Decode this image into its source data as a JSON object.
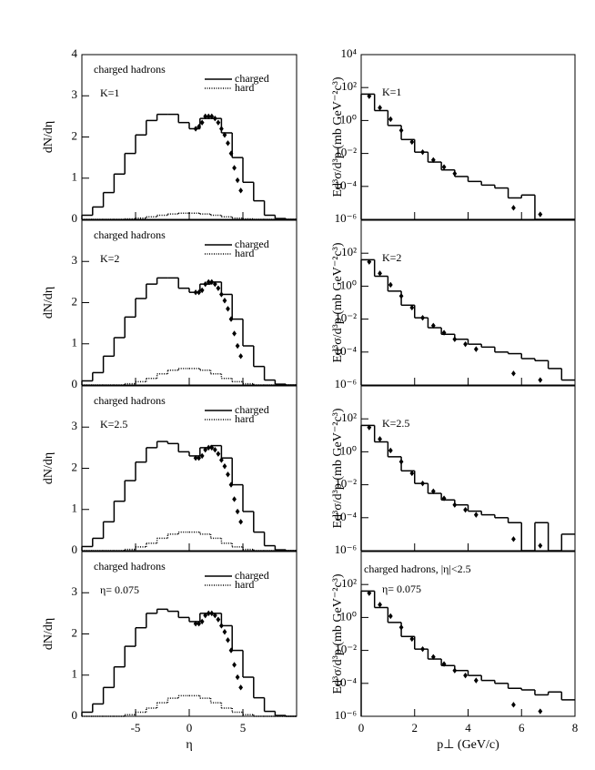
{
  "chart_data": [
    {
      "type": "histogram",
      "panel": "left",
      "ylabel": "dN/dη",
      "annotations": [
        "charged hadrons",
        "K=1"
      ],
      "bins": [
        -10,
        -9,
        -8,
        -7,
        -6,
        -5,
        -4,
        -3,
        -2,
        -1,
        0,
        1,
        2,
        3,
        4,
        5,
        6,
        7,
        8,
        9,
        10
      ],
      "series": [
        {
          "name": "charged",
          "color": "#000",
          "style": "solid",
          "values": [
            0.1,
            0.3,
            0.65,
            1.1,
            1.6,
            2.05,
            2.4,
            2.55,
            2.55,
            2.35,
            2.2,
            2.45,
            2.45,
            2.1,
            1.5,
            0.9,
            0.45,
            0.1,
            0.02,
            0
          ]
        },
        {
          "name": "hard",
          "color": "#000",
          "style": "dotted",
          "values": [
            0,
            0,
            0,
            0,
            0.01,
            0.03,
            0.06,
            0.1,
            0.13,
            0.15,
            0.15,
            0.13,
            0.1,
            0.06,
            0.03,
            0.01,
            0,
            0,
            0,
            0
          ]
        }
      ],
      "points": {
        "x": [
          0.6,
          0.9,
          1.2,
          1.5,
          1.8,
          2.1,
          2.4,
          2.7,
          3.0,
          3.3,
          3.6,
          3.9,
          4.2,
          4.5,
          4.8
        ],
        "values": [
          2.2,
          2.25,
          2.35,
          2.5,
          2.5,
          2.5,
          2.45,
          2.35,
          2.2,
          2.05,
          1.85,
          1.6,
          1.25,
          0.95,
          0.7
        ]
      },
      "xlim": [
        -10,
        10
      ],
      "xticks": [
        -5,
        0,
        5
      ],
      "show_xtick_labels": false,
      "ylim": [
        0,
        4
      ],
      "yticks": [
        0,
        1,
        2,
        3,
        4
      ]
    },
    {
      "type": "histogram",
      "panel": "right",
      "log_y": true,
      "ylabel": "Ed³σ/d³p (mb GeV⁻²c³)",
      "annotations": [
        "K=1"
      ],
      "bins": [
        0,
        0.5,
        1,
        1.5,
        2,
        2.5,
        3,
        3.5,
        4,
        4.5,
        5,
        5.5,
        6,
        6.5,
        7,
        7.5,
        8
      ],
      "values": [
        40,
        4,
        0.5,
        0.07,
        0.012,
        0.003,
        0.001,
        0.0004,
        0.0002,
        0.00012,
        8e-05,
        2e-05,
        3e-05,
        1e-06,
        1e-06,
        1e-06
      ],
      "points": {
        "x": [
          0.3,
          0.7,
          1.1,
          1.5,
          1.9,
          2.3,
          2.7,
          3.1,
          3.5,
          5.7,
          6.7
        ],
        "values": [
          30,
          6,
          1.2,
          0.25,
          0.05,
          0.012,
          0.004,
          0.0015,
          0.0006,
          5e-06,
          2e-06
        ]
      },
      "xlim": [
        0,
        8
      ],
      "xticks": [
        0,
        2,
        4,
        6,
        8
      ],
      "show_xtick_labels": false,
      "ylim": [
        1e-06,
        10000
      ],
      "yticks": [
        {
          "value": 10000,
          "label": "10⁴"
        },
        {
          "value": 100,
          "label": "10²"
        },
        {
          "value": 1,
          "label": "10⁰"
        },
        {
          "value": 0.01,
          "label": "10⁻²"
        },
        {
          "value": 0.0001,
          "label": "10⁻⁴"
        },
        {
          "value": 1e-06,
          "label": "10⁻⁶"
        }
      ]
    },
    {
      "type": "histogram",
      "panel": "left",
      "ylabel": "dN/dη",
      "annotations": [
        "charged hadrons",
        "K=2"
      ],
      "bins": [
        -10,
        -9,
        -8,
        -7,
        -6,
        -5,
        -4,
        -3,
        -2,
        -1,
        0,
        1,
        2,
        3,
        4,
        5,
        6,
        7,
        8,
        9,
        10
      ],
      "series": [
        {
          "name": "charged",
          "color": "#000",
          "style": "solid",
          "values": [
            0.1,
            0.3,
            0.7,
            1.15,
            1.65,
            2.1,
            2.45,
            2.6,
            2.6,
            2.35,
            2.25,
            2.45,
            2.5,
            2.2,
            1.6,
            0.95,
            0.45,
            0.12,
            0.02,
            0
          ]
        },
        {
          "name": "hard",
          "color": "#000",
          "style": "dotted",
          "values": [
            0,
            0,
            0,
            0,
            0.03,
            0.08,
            0.16,
            0.27,
            0.36,
            0.4,
            0.4,
            0.36,
            0.27,
            0.16,
            0.08,
            0.03,
            0,
            0,
            0,
            0
          ]
        }
      ],
      "points": {
        "x": [
          0.6,
          0.9,
          1.2,
          1.5,
          1.8,
          2.1,
          2.4,
          2.7,
          3.0,
          3.3,
          3.6,
          3.9,
          4.2,
          4.5,
          4.8
        ],
        "values": [
          2.25,
          2.25,
          2.3,
          2.45,
          2.5,
          2.5,
          2.45,
          2.35,
          2.2,
          2.05,
          1.85,
          1.6,
          1.25,
          0.95,
          0.7
        ]
      },
      "xlim": [
        -10,
        10
      ],
      "xticks": [
        -5,
        0,
        5
      ],
      "show_xtick_labels": false,
      "ylim": [
        0,
        4
      ],
      "yticks": [
        0,
        1,
        2,
        3
      ]
    },
    {
      "type": "histogram",
      "panel": "right",
      "log_y": true,
      "ylabel": "Ed³σ/d³p (mb GeV⁻²c³)",
      "annotations": [
        "K=2"
      ],
      "bins": [
        0,
        0.5,
        1,
        1.5,
        2,
        2.5,
        3,
        3.5,
        4,
        4.5,
        5,
        5.5,
        6,
        6.5,
        7,
        7.5,
        8
      ],
      "values": [
        40,
        4,
        0.5,
        0.07,
        0.012,
        0.003,
        0.0012,
        0.0006,
        0.0003,
        0.0002,
        0.0001,
        8e-05,
        4e-05,
        3e-05,
        1e-05,
        2e-06
      ],
      "points": {
        "x": [
          0.3,
          0.7,
          1.1,
          1.5,
          1.9,
          2.3,
          2.7,
          3.1,
          3.5,
          3.9,
          4.3,
          5.7,
          6.7
        ],
        "values": [
          30,
          6,
          1.2,
          0.25,
          0.05,
          0.012,
          0.004,
          0.0015,
          0.0006,
          0.0003,
          0.00015,
          5e-06,
          2e-06
        ]
      },
      "xlim": [
        0,
        8
      ],
      "xticks": [
        0,
        2,
        4,
        6,
        8
      ],
      "show_xtick_labels": false,
      "ylim": [
        1e-06,
        10000
      ],
      "yticks": [
        {
          "value": 100,
          "label": "10²"
        },
        {
          "value": 1,
          "label": "10⁰"
        },
        {
          "value": 0.01,
          "label": "10⁻²"
        },
        {
          "value": 0.0001,
          "label": "10⁻⁴"
        },
        {
          "value": 1e-06,
          "label": "10⁻⁶"
        }
      ]
    },
    {
      "type": "histogram",
      "panel": "left",
      "ylabel": "dN/dη",
      "annotations": [
        "charged hadrons",
        "K=2.5"
      ],
      "bins": [
        -10,
        -9,
        -8,
        -7,
        -6,
        -5,
        -4,
        -3,
        -2,
        -1,
        0,
        1,
        2,
        3,
        4,
        5,
        6,
        7,
        8,
        9,
        10
      ],
      "series": [
        {
          "name": "charged",
          "color": "#000",
          "style": "solid",
          "values": [
            0.1,
            0.3,
            0.7,
            1.2,
            1.7,
            2.15,
            2.5,
            2.65,
            2.6,
            2.4,
            2.3,
            2.5,
            2.55,
            2.25,
            1.6,
            0.95,
            0.45,
            0.12,
            0.02,
            0
          ]
        },
        {
          "name": "hard",
          "color": "#000",
          "style": "dotted",
          "values": [
            0,
            0,
            0,
            0,
            0.03,
            0.09,
            0.18,
            0.3,
            0.4,
            0.45,
            0.45,
            0.4,
            0.3,
            0.18,
            0.09,
            0.03,
            0,
            0,
            0,
            0
          ]
        }
      ],
      "points": {
        "x": [
          0.6,
          0.9,
          1.2,
          1.5,
          1.8,
          2.1,
          2.4,
          2.7,
          3.0,
          3.3,
          3.6,
          3.9,
          4.2,
          4.5,
          4.8
        ],
        "values": [
          2.25,
          2.25,
          2.3,
          2.45,
          2.5,
          2.5,
          2.45,
          2.35,
          2.2,
          2.05,
          1.85,
          1.6,
          1.25,
          0.95,
          0.7
        ]
      },
      "xlim": [
        -10,
        10
      ],
      "xticks": [
        -5,
        0,
        5
      ],
      "show_xtick_labels": false,
      "ylim": [
        0,
        4
      ],
      "yticks": [
        0,
        1,
        2,
        3
      ]
    },
    {
      "type": "histogram",
      "panel": "right",
      "log_y": true,
      "ylabel": "Ed³σ/d³p (mb GeV⁻²c³)",
      "annotations": [
        "K=2.5"
      ],
      "bins": [
        0,
        0.5,
        1,
        1.5,
        2,
        2.5,
        3,
        3.5,
        4,
        4.5,
        5,
        5.5,
        6,
        6.5,
        7,
        7.5,
        8
      ],
      "values": [
        40,
        4,
        0.5,
        0.07,
        0.012,
        0.003,
        0.0012,
        0.0006,
        0.00025,
        0.00015,
        0.0001,
        5e-05,
        1e-06,
        5e-05,
        1e-06,
        1e-05
      ],
      "points": {
        "x": [
          0.3,
          0.7,
          1.1,
          1.5,
          1.9,
          2.3,
          2.7,
          3.1,
          3.5,
          3.9,
          4.3,
          5.7,
          6.7
        ],
        "values": [
          30,
          6,
          1.2,
          0.25,
          0.05,
          0.012,
          0.004,
          0.0015,
          0.0006,
          0.0003,
          0.00015,
          5e-06,
          2e-06
        ]
      },
      "xlim": [
        0,
        8
      ],
      "xticks": [
        0,
        2,
        4,
        6,
        8
      ],
      "show_xtick_labels": false,
      "ylim": [
        1e-06,
        10000
      ],
      "yticks": [
        {
          "value": 100,
          "label": "10²"
        },
        {
          "value": 1,
          "label": "10⁰"
        },
        {
          "value": 0.01,
          "label": "10⁻²"
        },
        {
          "value": 0.0001,
          "label": "10⁻⁴"
        },
        {
          "value": 1e-06,
          "label": "10⁻⁶"
        }
      ]
    },
    {
      "type": "histogram",
      "panel": "left",
      "ylabel": "dN/dη",
      "xlabel": "η",
      "annotations": [
        "charged hadrons",
        "η= 0.075"
      ],
      "bins": [
        -10,
        -9,
        -8,
        -7,
        -6,
        -5,
        -4,
        -3,
        -2,
        -1,
        0,
        1,
        2,
        3,
        4,
        5,
        6,
        7,
        8,
        9,
        10
      ],
      "series": [
        {
          "name": "charged",
          "color": "#000",
          "style": "solid",
          "values": [
            0.1,
            0.3,
            0.7,
            1.2,
            1.7,
            2.15,
            2.5,
            2.6,
            2.55,
            2.4,
            2.3,
            2.5,
            2.5,
            2.2,
            1.6,
            0.95,
            0.45,
            0.12,
            0.02,
            0
          ]
        },
        {
          "name": "hard",
          "color": "#000",
          "style": "dotted",
          "values": [
            0,
            0,
            0,
            0,
            0.04,
            0.1,
            0.2,
            0.33,
            0.44,
            0.5,
            0.5,
            0.44,
            0.33,
            0.2,
            0.1,
            0.04,
            0,
            0,
            0,
            0
          ]
        }
      ],
      "points": {
        "x": [
          0.6,
          0.9,
          1.2,
          1.5,
          1.8,
          2.1,
          2.4,
          2.7,
          3.0,
          3.3,
          3.6,
          3.9,
          4.2,
          4.5,
          4.8
        ],
        "values": [
          2.25,
          2.25,
          2.3,
          2.45,
          2.5,
          2.5,
          2.45,
          2.35,
          2.2,
          2.05,
          1.85,
          1.6,
          1.25,
          0.95,
          0.7
        ]
      },
      "xlim": [
        -10,
        10
      ],
      "xticks": [
        -5,
        0,
        5
      ],
      "show_xtick_labels": true,
      "ylim": [
        0,
        4
      ],
      "yticks": [
        0,
        1,
        2,
        3
      ]
    },
    {
      "type": "histogram",
      "panel": "right",
      "log_y": true,
      "ylabel": "Ed³σ/d³p (mb GeV⁻²c³)",
      "xlabel": "p⊥ (GeV/c)",
      "annotations": [
        "charged hadrons, |η|<2.5",
        "η= 0.075"
      ],
      "bins": [
        0,
        0.5,
        1,
        1.5,
        2,
        2.5,
        3,
        3.5,
        4,
        4.5,
        5,
        5.5,
        6,
        6.5,
        7,
        7.5,
        8
      ],
      "values": [
        40,
        4,
        0.5,
        0.07,
        0.012,
        0.003,
        0.0012,
        0.0006,
        0.0003,
        0.00015,
        0.0001,
        5e-05,
        4e-05,
        2e-05,
        3e-05,
        1e-05
      ],
      "points": {
        "x": [
          0.3,
          0.7,
          1.1,
          1.5,
          1.9,
          2.3,
          2.7,
          3.1,
          3.5,
          3.9,
          4.3,
          5.7,
          6.7
        ],
        "values": [
          30,
          6,
          1.2,
          0.25,
          0.05,
          0.012,
          0.004,
          0.0015,
          0.0006,
          0.0003,
          0.00015,
          5e-06,
          2e-06
        ]
      },
      "xlim": [
        0,
        8
      ],
      "xticks": [
        0,
        2,
        4,
        6,
        8
      ],
      "show_xtick_labels": true,
      "ylim": [
        1e-06,
        10000
      ],
      "yticks": [
        {
          "value": 100,
          "label": "10²"
        },
        {
          "value": 1,
          "label": "10⁰"
        },
        {
          "value": 0.01,
          "label": "10⁻²"
        },
        {
          "value": 0.0001,
          "label": "10⁻⁴"
        },
        {
          "value": 1e-06,
          "label": "10⁻⁶"
        }
      ]
    }
  ]
}
